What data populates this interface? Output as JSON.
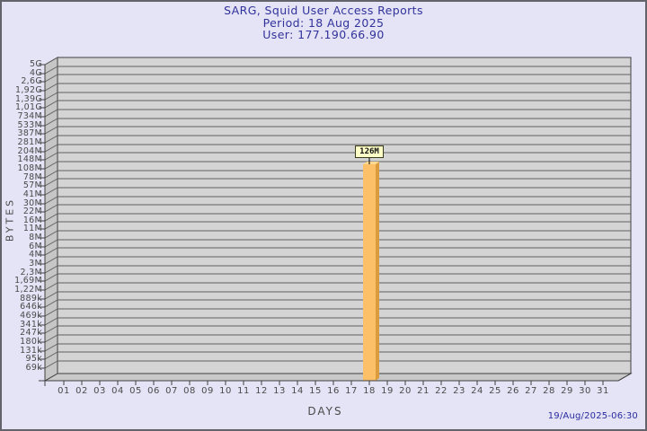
{
  "footer": {
    "timestamp": "19/Aug/2025-06:30"
  },
  "chart_data": {
    "type": "bar",
    "title": "SARG, Squid User Access Reports",
    "subtitle_lines": [
      "Period: 18 Aug 2025",
      "User: 177.190.66.90"
    ],
    "xlabel": "DAYS",
    "ylabel": "BYTES",
    "y_scale": "log",
    "y_tick_labels": [
      "5G",
      "4G",
      "2,6G",
      "1,92G",
      "1,39G",
      "1,01G",
      "734M",
      "533M",
      "387M",
      "281M",
      "204M",
      "148M",
      "108M",
      "78M",
      "57M",
      "41M",
      "30M",
      "22M",
      "16M",
      "11M",
      "8M",
      "6M",
      "4M",
      "3M",
      "2,3M",
      "1,69M",
      "1,22M",
      "889k",
      "646k",
      "469k",
      "341k",
      "247k",
      "180k",
      "131k",
      "95k",
      "69k"
    ],
    "x_tick_labels": [
      "01",
      "02",
      "03",
      "04",
      "05",
      "06",
      "07",
      "08",
      "09",
      "10",
      "11",
      "12",
      "13",
      "14",
      "15",
      "16",
      "17",
      "18",
      "19",
      "20",
      "21",
      "22",
      "23",
      "24",
      "25",
      "26",
      "27",
      "28",
      "29",
      "30",
      "31"
    ],
    "bars": [
      {
        "x": "18",
        "label": "126M"
      }
    ],
    "grid": true,
    "legend": "none",
    "colors": {
      "bar_front": "#FCC168",
      "bar_side": "#DA9C3C",
      "bar_top": "#FDD98F",
      "wall_back": "#D4D4D4",
      "wall_side": "#C6C6C6",
      "floor": "#C9C9C9",
      "grid_line": "#616161",
      "frame_line": "#3F3F3F",
      "axis_text": "#4A4A4A",
      "title_text": "#32329B",
      "page_bg": "#E4E4F6",
      "page_border": "#63636B",
      "value_box_bg": "#FFFFC8",
      "value_box_border": "#3A3A1E"
    }
  }
}
